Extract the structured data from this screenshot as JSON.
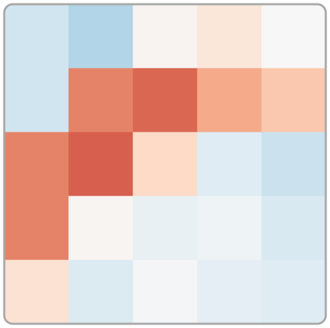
{
  "chart_data": {
    "type": "heatmap",
    "values": [
      [
        -0.2,
        -0.3,
        0.03,
        0.12,
        0.0
      ],
      [
        -0.2,
        0.5,
        0.58,
        0.38,
        0.27
      ],
      [
        0.5,
        0.6,
        0.2,
        -0.12,
        -0.22
      ],
      [
        0.5,
        0.02,
        -0.08,
        -0.05,
        -0.16
      ],
      [
        0.15,
        -0.14,
        -0.02,
        -0.1,
        -0.12
      ]
    ],
    "zlim": [
      -1,
      1
    ],
    "colors": [
      "#053061",
      "#2166ac",
      "#4393c3",
      "#92c5de",
      "#d1e5f0",
      "#f7f7f7",
      "#fddbc7",
      "#f4a582",
      "#d6604d",
      "#b2182b",
      "#67001f"
    ]
  }
}
